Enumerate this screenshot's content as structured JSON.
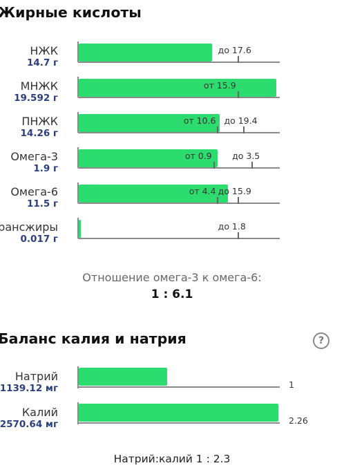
{
  "fatty": {
    "title": "Жирные кислоты",
    "rows": [
      {
        "name": "НЖК",
        "value": "14.7 г",
        "fill_pct": 66,
        "marks": [
          {
            "label": "до 17.6",
            "pos_pct": 79
          }
        ]
      },
      {
        "name": "МНЖК",
        "value": "19.592 г",
        "fill_pct": 98,
        "marks": [
          {
            "label": "от 15.9",
            "pos_pct": 79
          }
        ]
      },
      {
        "name": "ПНЖК",
        "value": "14.26 г",
        "fill_pct": 70,
        "marks": [
          {
            "label": "от 10.6",
            "pos_pct": 69
          },
          {
            "label": "до 19.4",
            "pos_pct": 82
          }
        ]
      },
      {
        "name": "Омега-3",
        "value": "1.9 г",
        "fill_pct": 69,
        "marks": [
          {
            "label": "от 0.9",
            "pos_pct": 67
          },
          {
            "label": "до 3.5",
            "pos_pct": 86
          }
        ]
      },
      {
        "name": "Омега-6",
        "value": "11.5 г",
        "fill_pct": 74,
        "marks": [
          {
            "label": "от 4.4",
            "pos_pct": 69
          },
          {
            "label": "до 15.9",
            "pos_pct": 79
          }
        ]
      },
      {
        "name": "Трансжиры",
        "value": "0.017 г",
        "fill_pct": 1,
        "marks": [
          {
            "label": "до 1.8",
            "pos_pct": 79
          }
        ]
      }
    ],
    "ratio_label": "Отношение омега-3 к омега-6:",
    "ratio_value": "1 : 6.1"
  },
  "balance": {
    "title": "Баланс калия и натрия",
    "help_icon": "question-circle-icon",
    "help_glyph": "?",
    "rows": [
      {
        "name": "Натрий",
        "value": "1139.12 мг",
        "fill_pct": 44,
        "ratio": "1"
      },
      {
        "name": "Калий",
        "value": "2570.64 мг",
        "fill_pct": 99,
        "ratio": "2.26"
      }
    ],
    "footer": "Натрий:калий 1 : 2.3"
  },
  "colors": {
    "bar": "#2ddc6f",
    "value_text": "#2b3f80",
    "axis": "#8a8a8a"
  }
}
